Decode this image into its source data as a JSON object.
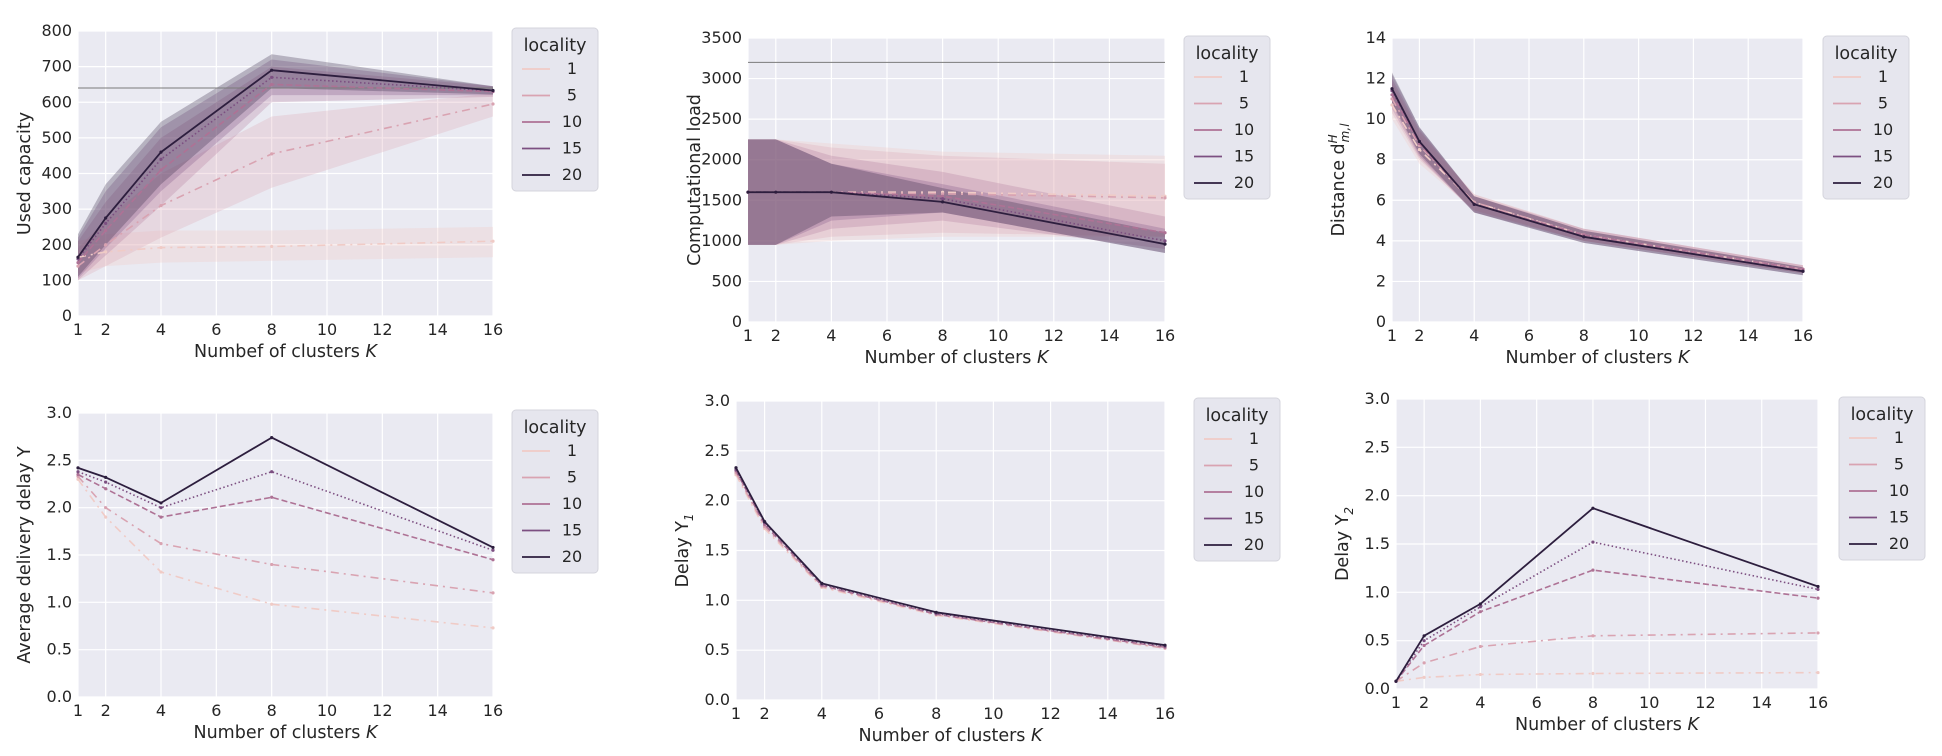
{
  "chart_data": [
    {
      "type": "line",
      "title": "",
      "xlabel": "Numbef of clusters K",
      "ylabel": "Used capacity",
      "x": [
        1,
        2,
        4,
        8,
        16
      ],
      "xticks": [
        1,
        2,
        4,
        6,
        8,
        10,
        12,
        14,
        16
      ],
      "xlim": [
        1,
        16
      ],
      "yticks": [
        0,
        100,
        200,
        300,
        400,
        500,
        600,
        700,
        800
      ],
      "ylim": [
        0,
        800
      ],
      "hline": 640,
      "legend_title": "locality",
      "legend_position": "right-outside",
      "series": [
        {
          "name": "1",
          "values": [
            165,
            180,
            192,
            195,
            210
          ],
          "ci_low": [
            120,
            140,
            150,
            155,
            165
          ],
          "ci_high": [
            210,
            230,
            240,
            240,
            250
          ]
        },
        {
          "name": "5",
          "values": [
            140,
            200,
            310,
            455,
            595
          ],
          "ci_low": [
            100,
            140,
            220,
            360,
            560
          ],
          "ci_high": [
            190,
            270,
            400,
            560,
            625
          ]
        },
        {
          "name": "10",
          "values": [
            150,
            240,
            410,
            650,
            630
          ],
          "ci_low": [
            100,
            170,
            310,
            600,
            615
          ],
          "ci_high": [
            210,
            320,
            500,
            700,
            645
          ]
        },
        {
          "name": "15",
          "values": [
            160,
            260,
            440,
            670,
            632
          ],
          "ci_low": [
            105,
            190,
            350,
            620,
            620
          ],
          "ci_high": [
            220,
            350,
            530,
            720,
            645
          ]
        },
        {
          "name": "20",
          "values": [
            165,
            275,
            460,
            690,
            633
          ],
          "ci_low": [
            110,
            200,
            370,
            640,
            622
          ],
          "ci_high": [
            230,
            370,
            545,
            735,
            645
          ]
        }
      ]
    },
    {
      "type": "line",
      "title": "",
      "xlabel": "Number of clusters K",
      "ylabel": "Computational load",
      "x": [
        1,
        2,
        4,
        8,
        16
      ],
      "xticks": [
        1,
        2,
        4,
        6,
        8,
        10,
        12,
        14,
        16
      ],
      "xlim": [
        1,
        16
      ],
      "yticks": [
        0,
        500,
        1000,
        1500,
        2000,
        2500,
        3000,
        3500
      ],
      "ylim": [
        0,
        3500
      ],
      "hline": 3200,
      "legend_title": "locality",
      "legend_position": "right-outside",
      "series": [
        {
          "name": "1",
          "values": [
            1600,
            1600,
            1600,
            1600,
            1550
          ],
          "ci_low": [
            950,
            950,
            1000,
            1050,
            1050
          ],
          "ci_high": [
            2250,
            2250,
            2200,
            2100,
            2050
          ]
        },
        {
          "name": "5",
          "values": [
            1600,
            1600,
            1600,
            1580,
            1530
          ],
          "ci_low": [
            950,
            950,
            1050,
            1100,
            1050
          ],
          "ci_high": [
            2250,
            2250,
            2150,
            2050,
            1950
          ]
        },
        {
          "name": "10",
          "values": [
            1600,
            1600,
            1600,
            1550,
            1100
          ],
          "ci_low": [
            950,
            950,
            1150,
            1250,
            900
          ],
          "ci_high": [
            2250,
            2250,
            2050,
            1850,
            1300
          ]
        },
        {
          "name": "15",
          "values": [
            1600,
            1600,
            1600,
            1520,
            1000
          ],
          "ci_low": [
            950,
            950,
            1250,
            1350,
            850
          ],
          "ci_high": [
            2250,
            2250,
            1950,
            1700,
            1150
          ]
        },
        {
          "name": "20",
          "values": [
            1600,
            1600,
            1600,
            1480,
            960
          ],
          "ci_low": [
            950,
            950,
            1300,
            1350,
            850
          ],
          "ci_high": [
            2250,
            2250,
            1950,
            1650,
            1100
          ]
        }
      ]
    },
    {
      "type": "line",
      "title": "",
      "xlabel": "Number of clusters K",
      "ylabel": "Distance d^H_m,l",
      "ylabel_parts": {
        "base": "Distance d",
        "sup": "H",
        "sub": "m,l"
      },
      "x": [
        1,
        2,
        4,
        8,
        16
      ],
      "xticks": [
        1,
        2,
        4,
        6,
        8,
        10,
        12,
        14,
        16
      ],
      "xlim": [
        1,
        16
      ],
      "yticks": [
        0,
        2,
        4,
        6,
        8,
        10,
        12,
        14
      ],
      "ylim": [
        0,
        14
      ],
      "legend_title": "locality",
      "legend_position": "right-outside",
      "series": [
        {
          "name": "1",
          "values": [
            10.7,
            8.5,
            5.9,
            4.3,
            2.6
          ],
          "ci_low": [
            10.0,
            7.8,
            5.5,
            4.0,
            2.4
          ],
          "ci_high": [
            11.5,
            9.2,
            6.3,
            4.6,
            2.8
          ]
        },
        {
          "name": "5",
          "values": [
            11.0,
            8.7,
            5.9,
            4.3,
            2.6
          ],
          "ci_low": [
            10.3,
            8.0,
            5.5,
            4.0,
            2.4
          ],
          "ci_high": [
            11.8,
            9.4,
            6.3,
            4.6,
            2.8
          ]
        },
        {
          "name": "10",
          "values": [
            11.2,
            8.8,
            5.8,
            4.3,
            2.6
          ],
          "ci_low": [
            10.5,
            8.1,
            5.4,
            4.0,
            2.4
          ],
          "ci_high": [
            12.0,
            9.5,
            6.2,
            4.6,
            2.8
          ]
        },
        {
          "name": "15",
          "values": [
            11.4,
            8.9,
            5.8,
            4.2,
            2.5
          ],
          "ci_low": [
            10.7,
            8.2,
            5.4,
            3.9,
            2.3
          ],
          "ci_high": [
            12.2,
            9.6,
            6.2,
            4.5,
            2.7
          ]
        },
        {
          "name": "20",
          "values": [
            11.5,
            8.9,
            5.8,
            4.2,
            2.5
          ],
          "ci_low": [
            10.8,
            8.3,
            5.4,
            3.9,
            2.3
          ],
          "ci_high": [
            12.3,
            9.6,
            6.2,
            4.5,
            2.7
          ]
        }
      ]
    },
    {
      "type": "line",
      "title": "",
      "xlabel": "Number of clusters K",
      "ylabel": "Average delivery delay Y",
      "x": [
        1,
        2,
        4,
        8,
        16
      ],
      "xticks": [
        1,
        2,
        4,
        6,
        8,
        10,
        12,
        14,
        16
      ],
      "xlim": [
        1,
        16
      ],
      "yticks": [
        0.0,
        0.5,
        1.0,
        1.5,
        2.0,
        2.5,
        3.0
      ],
      "ylim": [
        0,
        3
      ],
      "legend_title": "locality",
      "legend_position": "right-outside",
      "series": [
        {
          "name": "1",
          "values": [
            2.3,
            1.9,
            1.32,
            0.98,
            0.73
          ]
        },
        {
          "name": "5",
          "values": [
            2.33,
            2.0,
            1.62,
            1.4,
            1.1
          ]
        },
        {
          "name": "10",
          "values": [
            2.35,
            2.2,
            1.9,
            2.11,
            1.45
          ]
        },
        {
          "name": "15",
          "values": [
            2.38,
            2.27,
            2.0,
            2.38,
            1.55
          ]
        },
        {
          "name": "20",
          "values": [
            2.42,
            2.32,
            2.05,
            2.74,
            1.58
          ]
        }
      ]
    },
    {
      "type": "line",
      "title": "",
      "xlabel": "Number of clusters K",
      "ylabel": "Delay Y_1",
      "ylabel_parts": {
        "base": "Delay Y",
        "sub": "1"
      },
      "x": [
        1,
        2,
        4,
        8,
        16
      ],
      "xticks": [
        1,
        2,
        4,
        6,
        8,
        10,
        12,
        14,
        16
      ],
      "xlim": [
        1,
        16
      ],
      "yticks": [
        0.0,
        0.5,
        1.0,
        1.5,
        2.0,
        2.5,
        3.0
      ],
      "ylim": [
        0,
        3
      ],
      "legend_title": "locality",
      "legend_position": "right-outside",
      "series": [
        {
          "name": "1",
          "values": [
            2.26,
            1.72,
            1.13,
            0.85,
            0.52
          ]
        },
        {
          "name": "5",
          "values": [
            2.28,
            1.74,
            1.14,
            0.86,
            0.52
          ]
        },
        {
          "name": "10",
          "values": [
            2.3,
            1.76,
            1.15,
            0.86,
            0.53
          ]
        },
        {
          "name": "15",
          "values": [
            2.31,
            1.78,
            1.16,
            0.87,
            0.54
          ]
        },
        {
          "name": "20",
          "values": [
            2.33,
            1.79,
            1.17,
            0.88,
            0.55
          ]
        }
      ]
    },
    {
      "type": "line",
      "title": "",
      "xlabel": "Number of clusters K",
      "ylabel": "Delay Y_2",
      "ylabel_parts": {
        "base": "Delay Y",
        "sub": "2"
      },
      "x": [
        1,
        2,
        4,
        8,
        16
      ],
      "xticks": [
        1,
        2,
        4,
        6,
        8,
        10,
        12,
        14,
        16
      ],
      "xlim": [
        1,
        16
      ],
      "yticks": [
        0.0,
        0.5,
        1.0,
        1.5,
        2.0,
        2.5,
        3.0
      ],
      "ylim": [
        0,
        3
      ],
      "legend_title": "locality",
      "legend_position": "right-outside",
      "series": [
        {
          "name": "1",
          "values": [
            0.08,
            0.12,
            0.15,
            0.16,
            0.17
          ]
        },
        {
          "name": "5",
          "values": [
            0.08,
            0.27,
            0.44,
            0.55,
            0.58
          ]
        },
        {
          "name": "10",
          "values": [
            0.08,
            0.45,
            0.8,
            1.23,
            0.94
          ]
        },
        {
          "name": "15",
          "values": [
            0.08,
            0.5,
            0.85,
            1.52,
            1.03
          ]
        },
        {
          "name": "20",
          "values": [
            0.08,
            0.55,
            0.88,
            1.87,
            1.06
          ]
        }
      ]
    }
  ],
  "colors": {
    "series": [
      "#f0cbc6",
      "#d9a3b1",
      "#ae7295",
      "#7c4f81",
      "#2d1e3e"
    ],
    "ci_fill": [
      "#efc7c3",
      "#dba4b2",
      "#b07799",
      "#7d5485",
      "#2f2140"
    ],
    "axes_bg": "#eaeaf2",
    "grid": "#ffffff",
    "legend_bg": "#e6e6ee",
    "legend_border": "#d4d4dc",
    "hline": "#7b7b7b",
    "text": "#262626"
  },
  "styles": {
    "dash": [
      "8 5 2 5",
      "8 5 2 5",
      "6 3",
      "1.5 2.5",
      ""
    ]
  }
}
